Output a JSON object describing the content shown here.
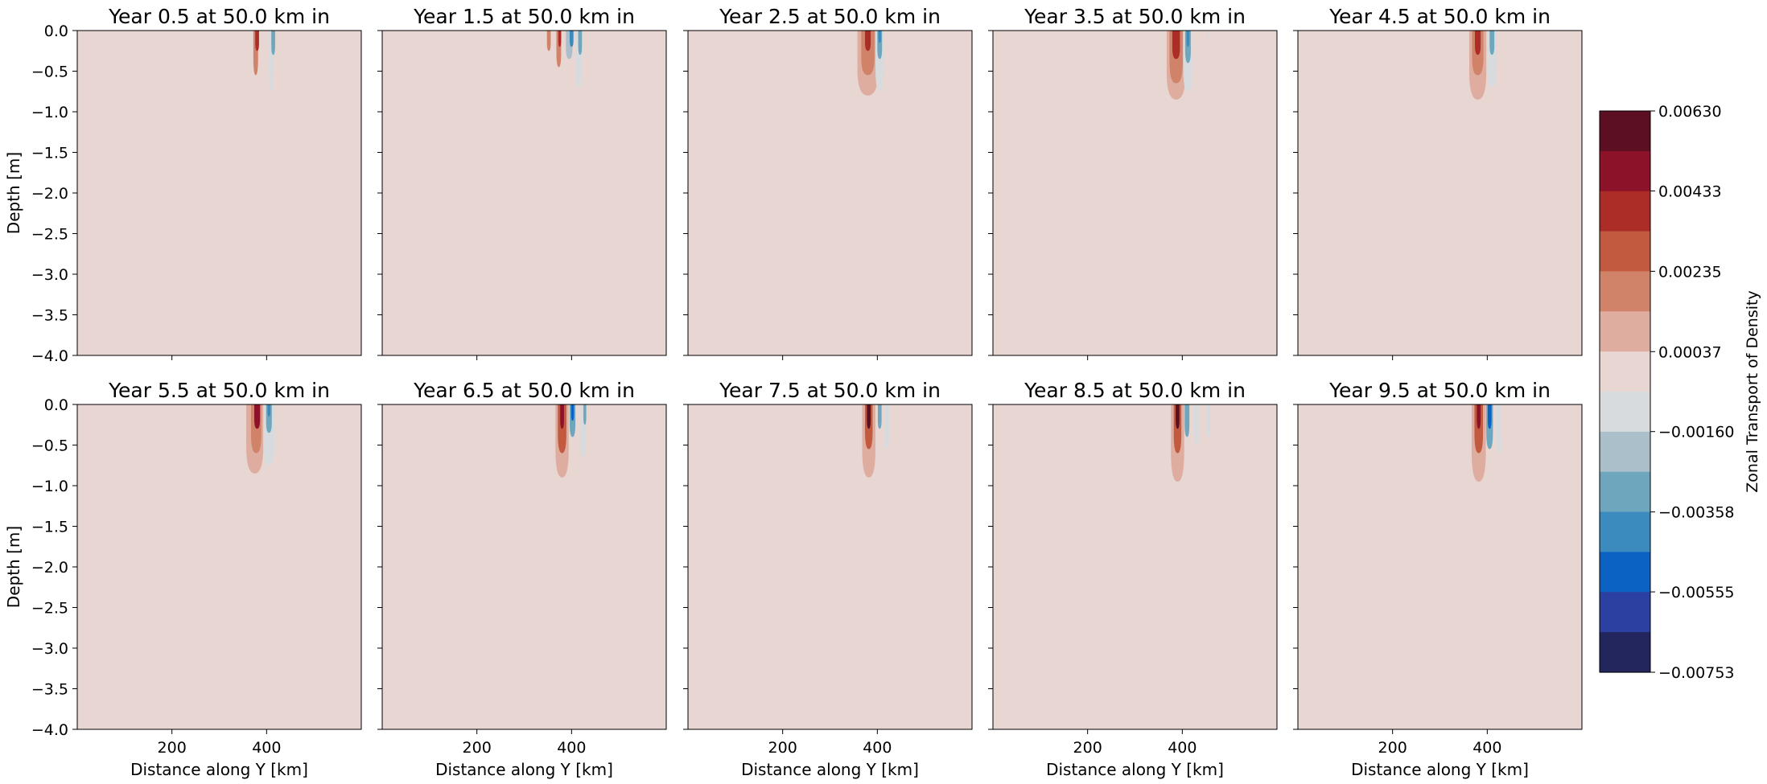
{
  "chart_data": {
    "type": "heatmap",
    "layout": {
      "rows": 2,
      "cols": 5
    },
    "xlabel": "Distance along Y [km]",
    "ylabel": "Depth [m]",
    "xlim": [
      0,
      600
    ],
    "ylim": [
      -4.0,
      0.0
    ],
    "xticks": [
      200,
      400
    ],
    "yticks": [
      0.0,
      -0.5,
      -1.0,
      -1.5,
      -2.0,
      -2.5,
      -3.0,
      -3.5,
      -4.0
    ],
    "ytick_labels": [
      "0.0",
      "−0.5",
      "−1.0",
      "−1.5",
      "−2.0",
      "−2.5",
      "−3.0",
      "−3.5",
      "−4.0"
    ],
    "background_color": "#e8d6d2",
    "panels": [
      {
        "title": "Year 0.5 at 50.0 km in",
        "features": [
          {
            "x": 347,
            "w": 7,
            "d": 0.65,
            "c": 0.00037
          },
          {
            "x": 372,
            "w": 8,
            "d": 0.85,
            "c": 0.00037
          },
          {
            "x": 377,
            "w": 5,
            "d": 0.55,
            "c": 0.0017
          },
          {
            "x": 380,
            "w": 4,
            "d": 0.25,
            "c": 0.004
          },
          {
            "x": 404,
            "w": 6,
            "d": 0.35,
            "c": -0.0005
          },
          {
            "x": 410,
            "w": 5,
            "d": 0.75,
            "c": -0.001
          },
          {
            "x": 414,
            "w": 4,
            "d": 0.3,
            "c": -0.003
          }
        ]
      },
      {
        "title": "Year 1.5 at 50.0 km in",
        "features": [
          {
            "x": 350,
            "w": 7,
            "d": 0.6,
            "c": 0.00037
          },
          {
            "x": 352,
            "w": 4,
            "d": 0.25,
            "c": 0.0015
          },
          {
            "x": 370,
            "w": 9,
            "d": 0.85,
            "c": 0.00037
          },
          {
            "x": 373,
            "w": 5,
            "d": 0.45,
            "c": 0.002
          },
          {
            "x": 375,
            "w": 3,
            "d": 0.2,
            "c": 0.004
          },
          {
            "x": 395,
            "w": 7,
            "d": 0.35,
            "c": -0.002
          },
          {
            "x": 400,
            "w": 4,
            "d": 0.2,
            "c": -0.004
          },
          {
            "x": 415,
            "w": 7,
            "d": 0.7,
            "c": -0.001
          },
          {
            "x": 418,
            "w": 4,
            "d": 0.3,
            "c": -0.003
          }
        ]
      },
      {
        "title": "Year 2.5 at 50.0 km in",
        "features": [
          {
            "x": 345,
            "w": 3,
            "d": 0.1,
            "c": 0.00037
          },
          {
            "x": 380,
            "w": 22,
            "d": 0.8,
            "c": 0.001
          },
          {
            "x": 380,
            "w": 14,
            "d": 0.55,
            "c": 0.002
          },
          {
            "x": 380,
            "w": 6,
            "d": 0.25,
            "c": 0.0035
          },
          {
            "x": 405,
            "w": 9,
            "d": 0.75,
            "c": -0.001
          },
          {
            "x": 405,
            "w": 5,
            "d": 0.35,
            "c": -0.003
          },
          {
            "x": 405,
            "w": 3,
            "d": 0.15,
            "c": -0.0045
          }
        ]
      },
      {
        "title": "Year 3.5 at 50.0 km in",
        "features": [
          {
            "x": 330,
            "w": 4,
            "d": 0.15,
            "c": 0.00037
          },
          {
            "x": 345,
            "w": 4,
            "d": 0.25,
            "c": 0.00037
          },
          {
            "x": 387,
            "w": 20,
            "d": 0.85,
            "c": 0.0008
          },
          {
            "x": 387,
            "w": 14,
            "d": 0.65,
            "c": 0.002
          },
          {
            "x": 387,
            "w": 8,
            "d": 0.35,
            "c": 0.0035
          },
          {
            "x": 412,
            "w": 10,
            "d": 0.75,
            "c": -0.001
          },
          {
            "x": 412,
            "w": 6,
            "d": 0.4,
            "c": -0.003
          },
          {
            "x": 412,
            "w": 3,
            "d": 0.2,
            "c": -0.0045
          },
          {
            "x": 453,
            "w": 2,
            "d": 0.12,
            "c": -0.001
          }
        ]
      },
      {
        "title": "Year 4.5 at 50.0 km in",
        "features": [
          {
            "x": 338,
            "w": 5,
            "d": 0.5,
            "c": 0.00037
          },
          {
            "x": 380,
            "w": 18,
            "d": 0.85,
            "c": 0.001
          },
          {
            "x": 380,
            "w": 12,
            "d": 0.55,
            "c": 0.002
          },
          {
            "x": 380,
            "w": 6,
            "d": 0.3,
            "c": 0.004
          },
          {
            "x": 410,
            "w": 10,
            "d": 0.7,
            "c": -0.001
          },
          {
            "x": 410,
            "w": 5,
            "d": 0.3,
            "c": -0.003
          },
          {
            "x": 596,
            "w": 3,
            "d": 0.3,
            "c": 0.00037
          }
        ]
      },
      {
        "title": "Year 5.5 at 50.0 km in",
        "features": [
          {
            "x": 330,
            "w": 10,
            "d": 0.7,
            "c": 0.00037
          },
          {
            "x": 375,
            "w": 18,
            "d": 0.85,
            "c": 0.001
          },
          {
            "x": 378,
            "w": 11,
            "d": 0.6,
            "c": 0.002
          },
          {
            "x": 380,
            "w": 6,
            "d": 0.3,
            "c": 0.0045
          },
          {
            "x": 405,
            "w": 12,
            "d": 0.75,
            "c": -0.001
          },
          {
            "x": 405,
            "w": 6,
            "d": 0.35,
            "c": -0.003
          },
          {
            "x": 405,
            "w": 3,
            "d": 0.15,
            "c": -0.0045
          },
          {
            "x": 597,
            "w": 2,
            "d": 0.25,
            "c": 0.00037
          }
        ]
      },
      {
        "title": "Year 6.5 at 50.0 km in",
        "features": [
          {
            "x": 340,
            "w": 5,
            "d": 0.45,
            "c": 0.00037
          },
          {
            "x": 380,
            "w": 14,
            "d": 0.9,
            "c": 0.001
          },
          {
            "x": 380,
            "w": 9,
            "d": 0.6,
            "c": 0.0025
          },
          {
            "x": 380,
            "w": 4,
            "d": 0.3,
            "c": 0.005
          },
          {
            "x": 402,
            "w": 6,
            "d": 0.4,
            "c": -0.003
          },
          {
            "x": 402,
            "w": 3,
            "d": 0.2,
            "c": -0.005
          },
          {
            "x": 425,
            "w": 6,
            "d": 0.65,
            "c": -0.001
          },
          {
            "x": 428,
            "w": 3,
            "d": 0.25,
            "c": -0.003
          },
          {
            "x": 455,
            "w": 3,
            "d": 0.3,
            "c": 0.00037
          },
          {
            "x": 598,
            "w": 2,
            "d": 0.2,
            "c": 0.00037
          }
        ]
      },
      {
        "title": "Year 7.5 at 50.0 km in",
        "features": [
          {
            "x": 345,
            "w": 6,
            "d": 0.6,
            "c": 0.00037
          },
          {
            "x": 382,
            "w": 14,
            "d": 0.9,
            "c": 0.001
          },
          {
            "x": 382,
            "w": 8,
            "d": 0.55,
            "c": 0.0025
          },
          {
            "x": 382,
            "w": 4,
            "d": 0.3,
            "c": 0.0055
          },
          {
            "x": 405,
            "w": 4,
            "d": 0.3,
            "c": -0.003
          },
          {
            "x": 420,
            "w": 5,
            "d": 0.55,
            "c": -0.001
          },
          {
            "x": 437,
            "w": 4,
            "d": 0.6,
            "c": 0.00037
          },
          {
            "x": 598,
            "w": 2,
            "d": 0.2,
            "c": 0.00037
          }
        ]
      },
      {
        "title": "Year 8.5 at 50.0 km in",
        "features": [
          {
            "x": 355,
            "w": 5,
            "d": 0.55,
            "c": 0.00037
          },
          {
            "x": 390,
            "w": 14,
            "d": 0.95,
            "c": 0.001
          },
          {
            "x": 390,
            "w": 8,
            "d": 0.6,
            "c": 0.0025
          },
          {
            "x": 390,
            "w": 4,
            "d": 0.3,
            "c": 0.0055
          },
          {
            "x": 410,
            "w": 5,
            "d": 0.4,
            "c": -0.003
          },
          {
            "x": 430,
            "w": 5,
            "d": 0.5,
            "c": -0.001
          },
          {
            "x": 455,
            "w": 4,
            "d": 0.4,
            "c": -0.001
          }
        ]
      },
      {
        "title": "Year 9.5 at 50.0 km in",
        "features": [
          {
            "x": 350,
            "w": 5,
            "d": 0.5,
            "c": 0.00037
          },
          {
            "x": 382,
            "w": 15,
            "d": 0.95,
            "c": 0.001
          },
          {
            "x": 382,
            "w": 9,
            "d": 0.6,
            "c": 0.0025
          },
          {
            "x": 382,
            "w": 4,
            "d": 0.3,
            "c": 0.005
          },
          {
            "x": 405,
            "w": 7,
            "d": 0.55,
            "c": -0.003
          },
          {
            "x": 405,
            "w": 4,
            "d": 0.3,
            "c": -0.0055
          },
          {
            "x": 425,
            "w": 5,
            "d": 0.6,
            "c": -0.001
          }
        ]
      }
    ],
    "colorbar": {
      "label": "Zonal Transport of Density",
      "range": [
        -0.00753,
        0.0063
      ],
      "tick_values": [
        0.0063,
        0.00433,
        0.00235,
        0.00037,
        -0.0016,
        -0.00358,
        -0.00555,
        -0.00753
      ],
      "tick_labels": [
        "0.00630",
        "0.00433",
        "0.00235",
        "0.00037",
        "−0.00160",
        "−0.00358",
        "−0.00555",
        "−0.00753"
      ],
      "levels_top_to_bottom": [
        "#5c0f22",
        "#8b1229",
        "#ac2c28",
        "#c15a3e",
        "#d18369",
        "#deada0",
        "#e8d6d2",
        "#d8dbdd",
        "#aabfc9",
        "#6ea7bd",
        "#3b8bbf",
        "#0b62c2",
        "#2b40a1",
        "#22265c"
      ]
    }
  }
}
